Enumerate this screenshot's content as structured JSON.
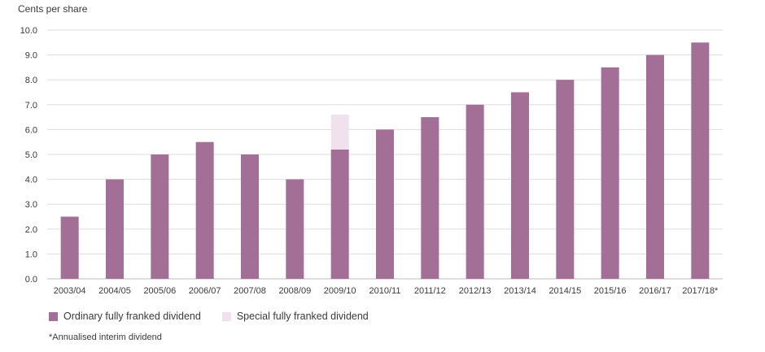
{
  "chart_data": {
    "type": "bar",
    "stacked": true,
    "ylabel": "Cents per share",
    "ylim": [
      0,
      10
    ],
    "yticks": [
      "0.0",
      "1.0",
      "2.0",
      "3.0",
      "4.0",
      "5.0",
      "6.0",
      "7.0",
      "8.0",
      "9.0",
      "10.0"
    ],
    "grid": true,
    "categories": [
      "2003/04",
      "2004/05",
      "2005/06",
      "2006/07",
      "2007/08",
      "2008/09",
      "2009/10",
      "2010/11",
      "2011/12",
      "2012/13",
      "2013/14",
      "2014/15",
      "2015/16",
      "2016/17",
      "2017/18*"
    ],
    "series": [
      {
        "name": "Ordinary fully franked dividend",
        "color": "#a46f96",
        "values": [
          2.5,
          4.0,
          5.0,
          5.5,
          5.0,
          4.0,
          5.2,
          6.0,
          6.5,
          7.0,
          7.5,
          8.0,
          8.5,
          9.0,
          9.5
        ]
      },
      {
        "name": "Special fully franked dividend",
        "color": "#f0e2ec",
        "values": [
          0,
          0,
          0,
          0,
          0,
          0,
          1.4,
          0,
          0,
          0,
          0,
          0,
          0,
          0,
          0
        ]
      }
    ],
    "legend_position": "bottom-left",
    "footnote": "*Annualised interim dividend"
  }
}
